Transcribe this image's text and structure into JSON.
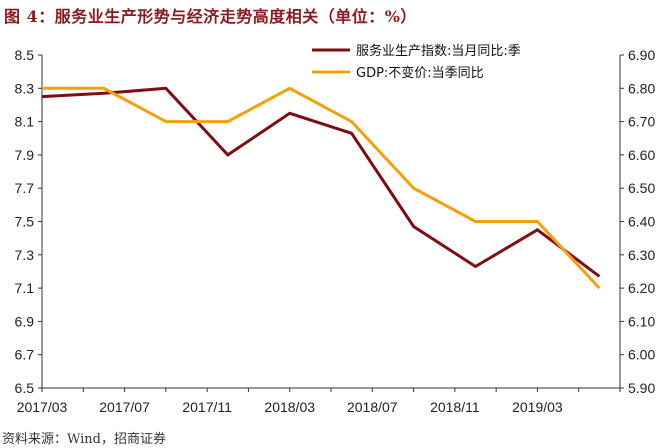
{
  "title": "图 4：服务业生产形势与经济走势高度相关（单位：%）",
  "source": "资料来源：Wind，招商证券",
  "chart_data": {
    "type": "line",
    "categories": [
      "2017/03",
      "2017/05",
      "2017/07",
      "2017/09",
      "2017/11",
      "2018/01",
      "2018/03",
      "2018/05",
      "2018/07",
      "2018/09",
      "2018/11",
      "2019/01",
      "2019/03",
      "2019/05",
      "2019/06"
    ],
    "x_tick_labels": [
      "2017/03",
      "2017/07",
      "2017/11",
      "2018/03",
      "2018/07",
      "2018/11",
      "2019/03"
    ],
    "left_axis": {
      "min": 6.5,
      "max": 8.5,
      "ticks": [
        6.5,
        6.7,
        6.9,
        7.1,
        7.3,
        7.5,
        7.7,
        7.9,
        8.1,
        8.3,
        8.5
      ]
    },
    "right_axis": {
      "min": 5.9,
      "max": 6.9,
      "ticks": [
        5.9,
        6.0,
        6.1,
        6.2,
        6.3,
        6.4,
        6.5,
        6.6,
        6.7,
        6.8,
        6.9
      ]
    },
    "legend_position": "top-right",
    "grid": false,
    "series": [
      {
        "name": "服务业生产指数:当月同比:季",
        "axis": "left",
        "color": "#7b0f12",
        "x": [
          "2017/03",
          "2017/06",
          "2017/09",
          "2017/12",
          "2018/03",
          "2018/06",
          "2018/09",
          "2018/12",
          "2019/03",
          "2019/06"
        ],
        "values": [
          8.25,
          8.27,
          8.3,
          7.9,
          8.15,
          8.03,
          7.47,
          7.23,
          7.45,
          7.17
        ]
      },
      {
        "name": "GDP:不变价:当季同比",
        "axis": "right",
        "color": "#f5a00a",
        "x": [
          "2017/03",
          "2017/06",
          "2017/09",
          "2017/12",
          "2018/03",
          "2018/06",
          "2018/09",
          "2018/12",
          "2019/03",
          "2019/06"
        ],
        "values": [
          6.8,
          6.8,
          6.7,
          6.7,
          6.8,
          6.7,
          6.5,
          6.4,
          6.4,
          6.2
        ]
      }
    ]
  }
}
